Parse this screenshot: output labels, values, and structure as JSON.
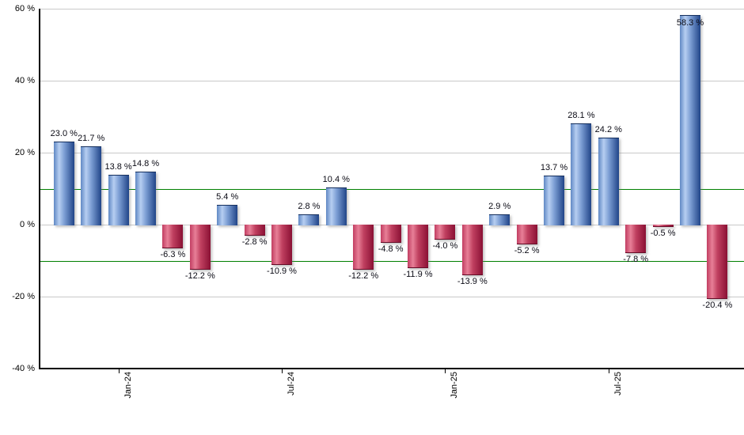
{
  "chart_data": {
    "type": "bar",
    "title": "",
    "xlabel": "",
    "ylabel": "",
    "ylim": [
      -40,
      60
    ],
    "grid": true,
    "values": [
      23.0,
      21.7,
      13.8,
      14.8,
      -6.3,
      -12.2,
      5.4,
      -2.8,
      -10.9,
      2.8,
      10.4,
      -12.2,
      -4.8,
      -11.9,
      -4.0,
      -13.9,
      2.9,
      -5.2,
      13.7,
      28.1,
      24.2,
      -7.8,
      -0.5,
      58.3,
      -20.4
    ],
    "bar_labels": [
      "23.0 %",
      "21.7 %",
      "13.8 %",
      "14.8 %",
      "-6.3 %",
      "-12.2 %",
      "5.4 %",
      "-2.8 %",
      "-10.9 %",
      "2.8 %",
      "10.4 %",
      "-12.2 %",
      "-4.8 %",
      "-11.9 %",
      "-4.0 %",
      "-13.9 %",
      "2.9 %",
      "-5.2 %",
      "13.7 %",
      "28.1 %",
      "24.2 %",
      "-7.8 %",
      "-0.5 %",
      "58.3 %",
      "-20.4 %"
    ],
    "y_tick_labels": [
      "60 %",
      "40 %",
      "20 %",
      "0 %",
      "-20 %",
      "-40 %"
    ],
    "y_tick_values": [
      60,
      40,
      20,
      0,
      -20,
      -40
    ],
    "x_ticks": [
      {
        "label": "Jan-24",
        "bar_index": 2
      },
      {
        "label": "Jul-24",
        "bar_index": 8
      },
      {
        "label": "Jan-25",
        "bar_index": 14
      },
      {
        "label": "Jul-25",
        "bar_index": 20
      }
    ],
    "reference_lines": {
      "values": [
        10,
        -10
      ],
      "color": "#008000"
    },
    "legend": [],
    "colors": {
      "positive_bar_light": "#b6cef1",
      "positive_bar_dark": "#204488",
      "positive_bar_edge": "#6088c4",
      "negative_bar_light": "#e77f97",
      "negative_bar_dark": "#8a1034",
      "negative_bar_edge": "#c23e62",
      "gridline": "#c9c9c9",
      "axis": "#000000",
      "label_text": "#0a0a14",
      "background": "#ffffff"
    }
  }
}
